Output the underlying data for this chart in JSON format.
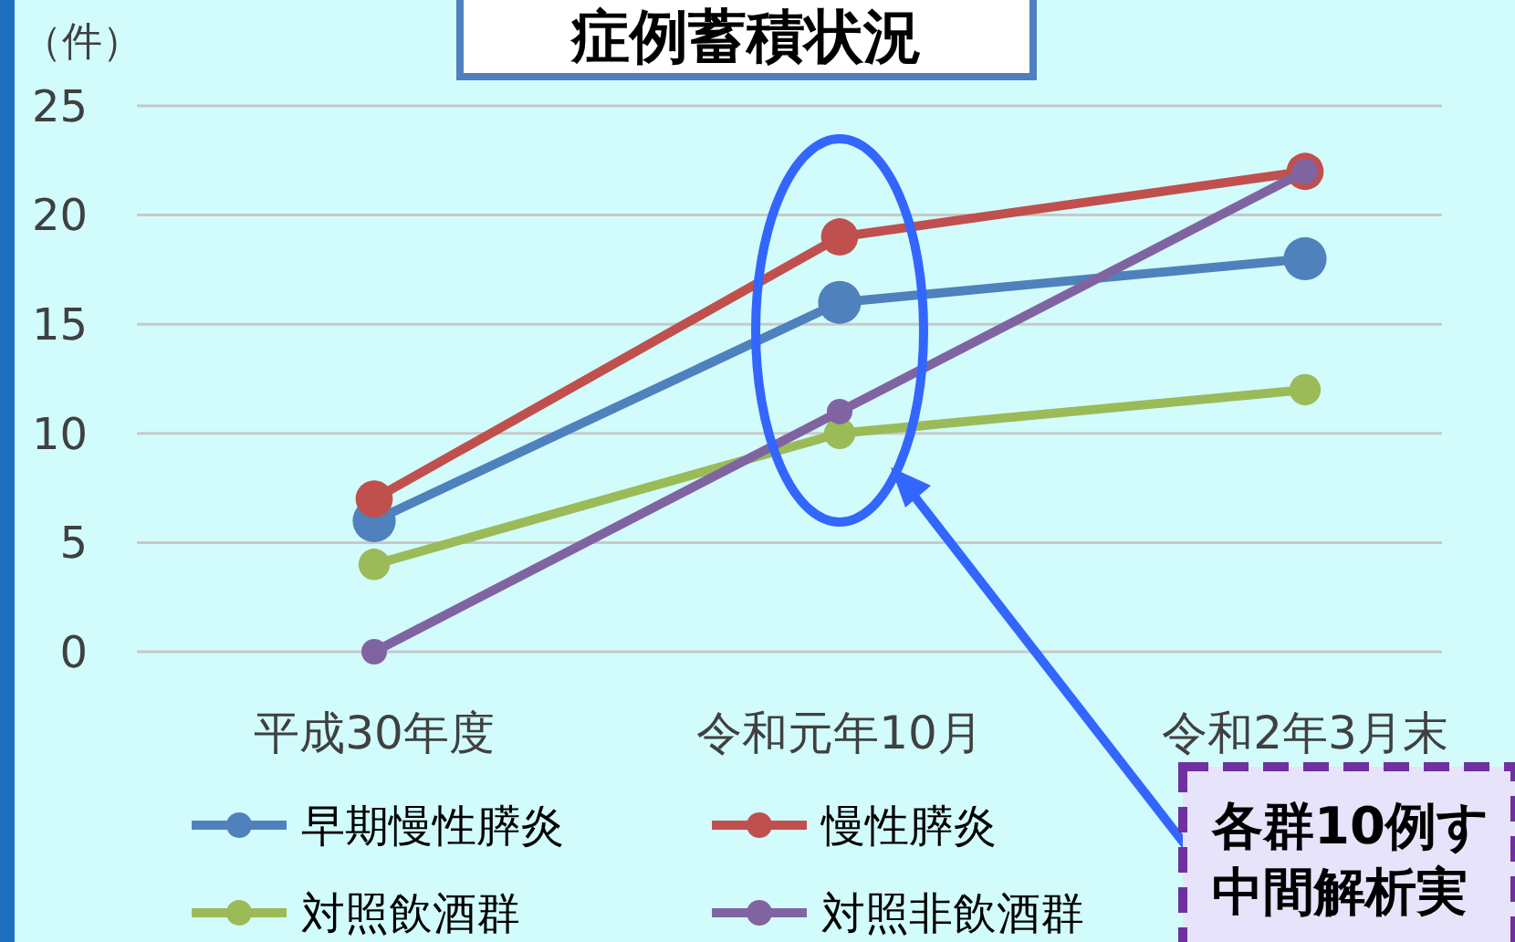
{
  "chart_data": {
    "type": "line",
    "title": "症例蓄積状況",
    "ylabel": "（件）",
    "categories": [
      "平成30年度",
      "令和元年10月",
      "令和2年3月末"
    ],
    "series": [
      {
        "name": "早期慢性膵炎",
        "color": "#4f81bd",
        "values": [
          6,
          16,
          18
        ]
      },
      {
        "name": "慢性膵炎",
        "color": "#c0504d",
        "values": [
          7,
          19,
          22
        ]
      },
      {
        "name": "対照飲酒群",
        "color": "#9bbb59",
        "values": [
          4,
          10,
          12
        ]
      },
      {
        "name": "対照非飲酒群",
        "color": "#8064a2",
        "values": [
          0,
          11,
          22
        ]
      }
    ],
    "ylim": [
      0,
      25
    ],
    "yticks": [
      0,
      5,
      10,
      15,
      20,
      25
    ],
    "grid": "y",
    "legend": "bottom",
    "marker": "circle",
    "line_style": "solid",
    "annotations": [
      "各群10例す",
      "中間解析実"
    ]
  }
}
